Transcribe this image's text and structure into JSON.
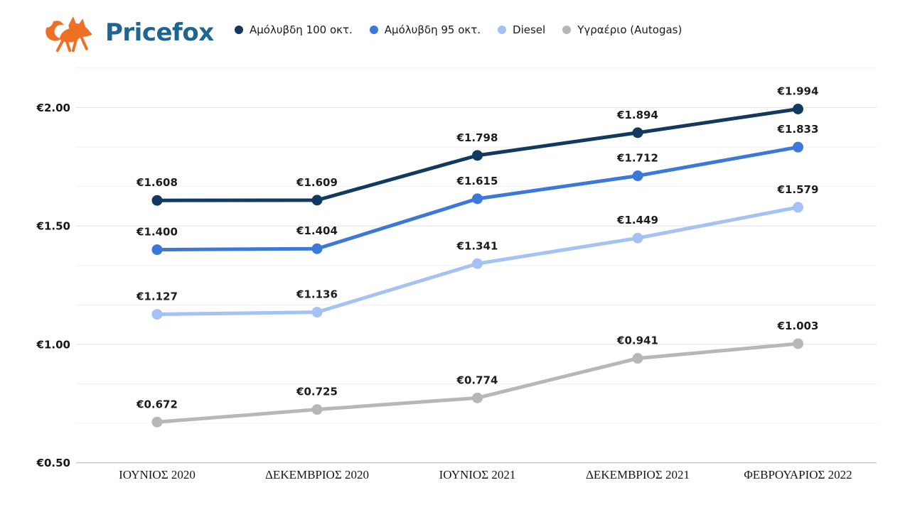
{
  "header": {
    "logo_text": "Pricefox",
    "logo_colors": {
      "fox_orange": "#ee7024",
      "text_blue": "#1e6591"
    }
  },
  "chart_data": {
    "type": "line",
    "x": [
      "ΙΟΥΝΙΟΣ 2020",
      "ΔΕΚΕΜΒΡΙΟΣ 2020",
      "ΙΟΥΝΙΟΣ 2021",
      "ΔΕΚΕΜΒΡΙΟΣ 2021",
      "ΦΕΒΡΟΥΑΡΙΟΣ 2022"
    ],
    "series": [
      {
        "name": "Αμόλυβδη 100 οκτ.",
        "color": "#12395f",
        "values": [
          1.608,
          1.609,
          1.798,
          1.894,
          1.994
        ]
      },
      {
        "name": "Αμόλυβδη 95 οκτ.",
        "color": "#3c78d8",
        "values": [
          1.4,
          1.404,
          1.615,
          1.712,
          1.833
        ]
      },
      {
        "name": "Diesel",
        "color": "#a4c2f4",
        "values": [
          1.127,
          1.136,
          1.341,
          1.449,
          1.579
        ]
      },
      {
        "name": "Υγραέριο (Autogas)",
        "color": "#b7b7b7",
        "values": [
          0.672,
          0.725,
          0.774,
          0.941,
          1.003
        ]
      }
    ],
    "value_prefix": "€",
    "value_decimals": 3,
    "y_axis": {
      "tick_labels": [
        "€2.00",
        "€1.50",
        "€1.00",
        "€0.50"
      ],
      "tick_values": [
        2.0,
        1.5,
        1.0,
        0.5
      ],
      "min_displayed": 0.5,
      "max_displayed": 2.0,
      "minor_divisions_per_major": 3
    },
    "grid": true,
    "legend_position": "top"
  }
}
